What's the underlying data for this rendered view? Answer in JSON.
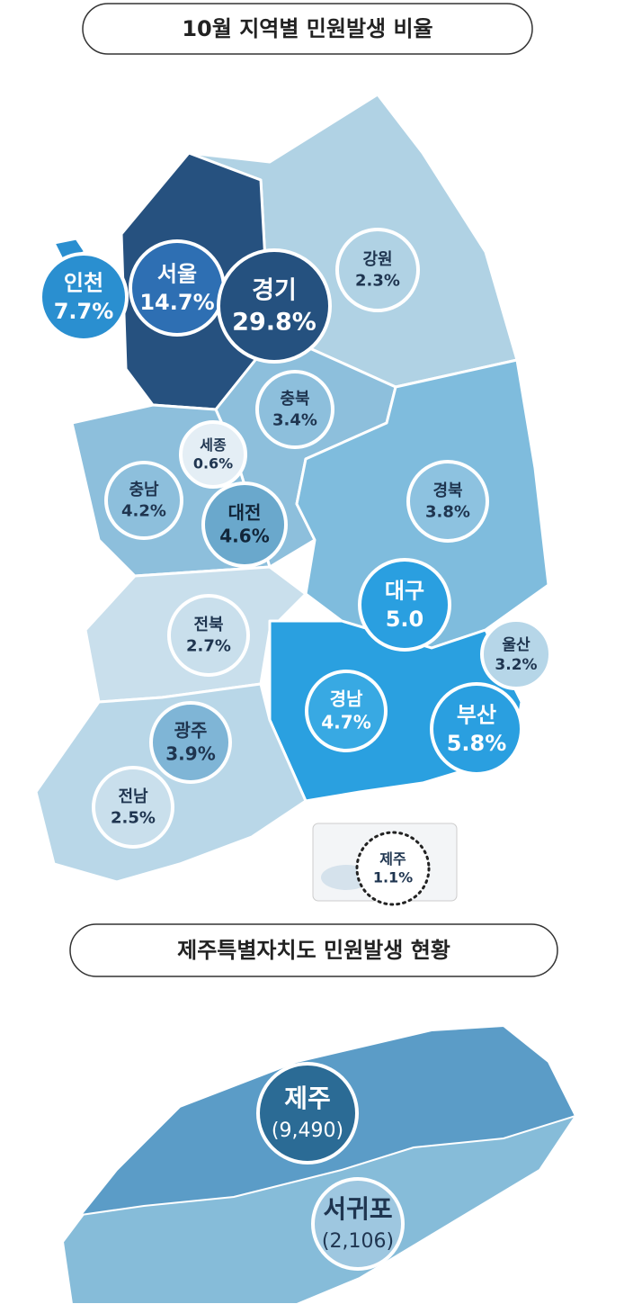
{
  "title": "10월 지역별 민원발생 비율",
  "regions": [
    {
      "name": "인천",
      "value": "7.7%"
    },
    {
      "name": "서울",
      "value": "14.7%"
    },
    {
      "name": "경기",
      "value": "29.8%"
    },
    {
      "name": "강원",
      "value": "2.3%"
    },
    {
      "name": "충북",
      "value": "3.4%"
    },
    {
      "name": "세종",
      "value": "0.6%"
    },
    {
      "name": "충남",
      "value": "4.2%"
    },
    {
      "name": "대전",
      "value": "4.6%"
    },
    {
      "name": "경북",
      "value": "3.8%"
    },
    {
      "name": "대구",
      "value": "5.0"
    },
    {
      "name": "울산",
      "value": "3.2%"
    },
    {
      "name": "전북",
      "value": "2.7%"
    },
    {
      "name": "경남",
      "value": "4.7%"
    },
    {
      "name": "부산",
      "value": "5.8%"
    },
    {
      "name": "광주",
      "value": "3.9%"
    },
    {
      "name": "전남",
      "value": "2.5%"
    },
    {
      "name": "제주",
      "value": "1.1%"
    }
  ],
  "jeju_title": "제주특별자치도 민원발생 현황",
  "jeju_cities": [
    {
      "name": "제주",
      "value": "(9,490)"
    },
    {
      "name": "서귀포",
      "value": "(2,106)"
    }
  ]
}
